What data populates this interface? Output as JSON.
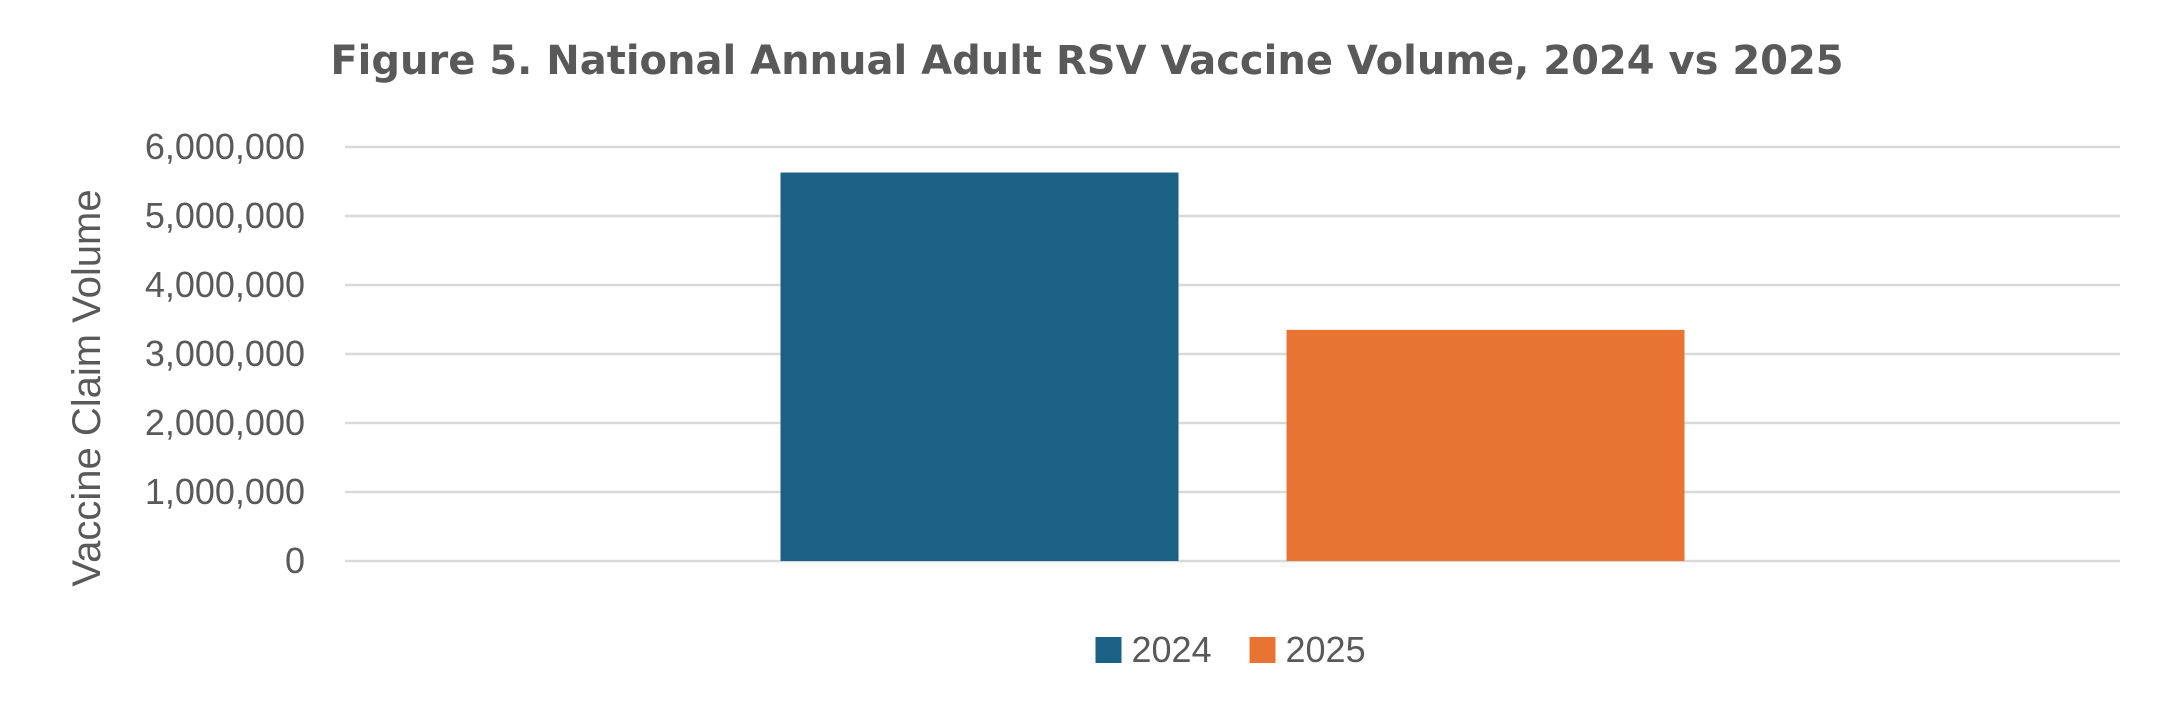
{
  "chart_data": {
    "type": "bar",
    "title": "Figure 5. National Annual Adult RSV Vaccine Volume, 2024 vs 2025",
    "xlabel": "",
    "ylabel": "Vaccine Claim Volume",
    "ylim": [
      0,
      6000000
    ],
    "yticks": [
      0,
      1000000,
      2000000,
      3000000,
      4000000,
      5000000,
      6000000
    ],
    "ytick_labels": [
      "0",
      "1,000,000",
      "2,000,000",
      "3,000,000",
      "4,000,000",
      "5,000,000",
      "6,000,000"
    ],
    "grid": true,
    "legend_position": "bottom",
    "series": [
      {
        "name": "2024",
        "color": "#1a6185",
        "values": [
          5630000
        ]
      },
      {
        "name": "2025",
        "color": "#e87433",
        "values": [
          3350000
        ]
      }
    ]
  }
}
